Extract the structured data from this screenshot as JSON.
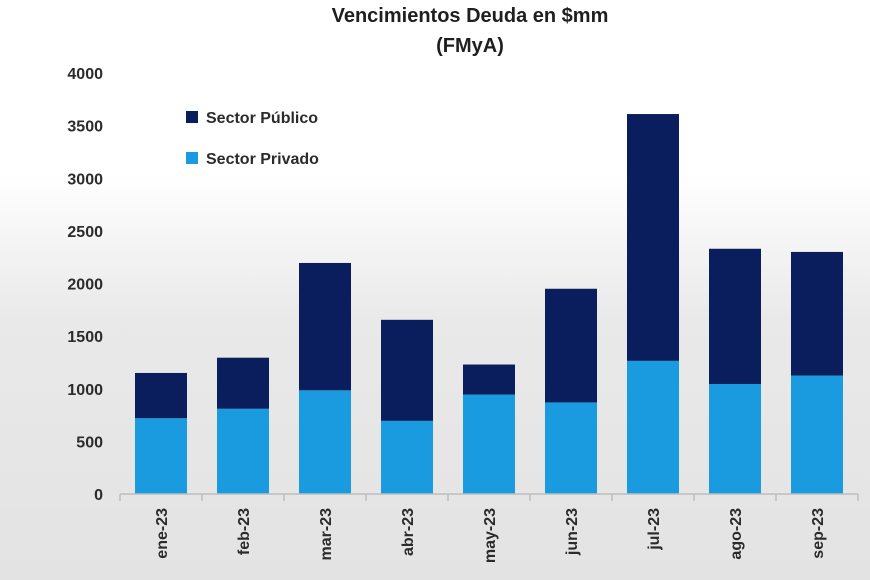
{
  "chart_data": {
    "type": "bar",
    "stacked": true,
    "title": "Vencimientos Deuda en $mm",
    "subtitle": "(FMyA)",
    "categories": [
      "ene-23",
      "feb-23",
      "mar-23",
      "abr-23",
      "may-23",
      "jun-23",
      "jul-23",
      "ago-23",
      "sep-23"
    ],
    "series": [
      {
        "name": "Sector Privado",
        "color": "#1a9be0",
        "values": [
          720,
          810,
          985,
          695,
          945,
          870,
          1265,
          1045,
          1125
        ]
      },
      {
        "name": "Sector Público",
        "color": "#0a1d5c",
        "values": [
          430,
          485,
          1210,
          960,
          285,
          1080,
          2345,
          1285,
          1175
        ]
      }
    ],
    "legend_order": [
      "Sector Público",
      "Sector Privado"
    ],
    "yticks": [
      "0",
      "500",
      "1000",
      "1500",
      "2000",
      "2500",
      "3000",
      "3500",
      "4000"
    ],
    "ylim": [
      0,
      4000
    ],
    "legend_position": "top-left",
    "grid": false
  }
}
